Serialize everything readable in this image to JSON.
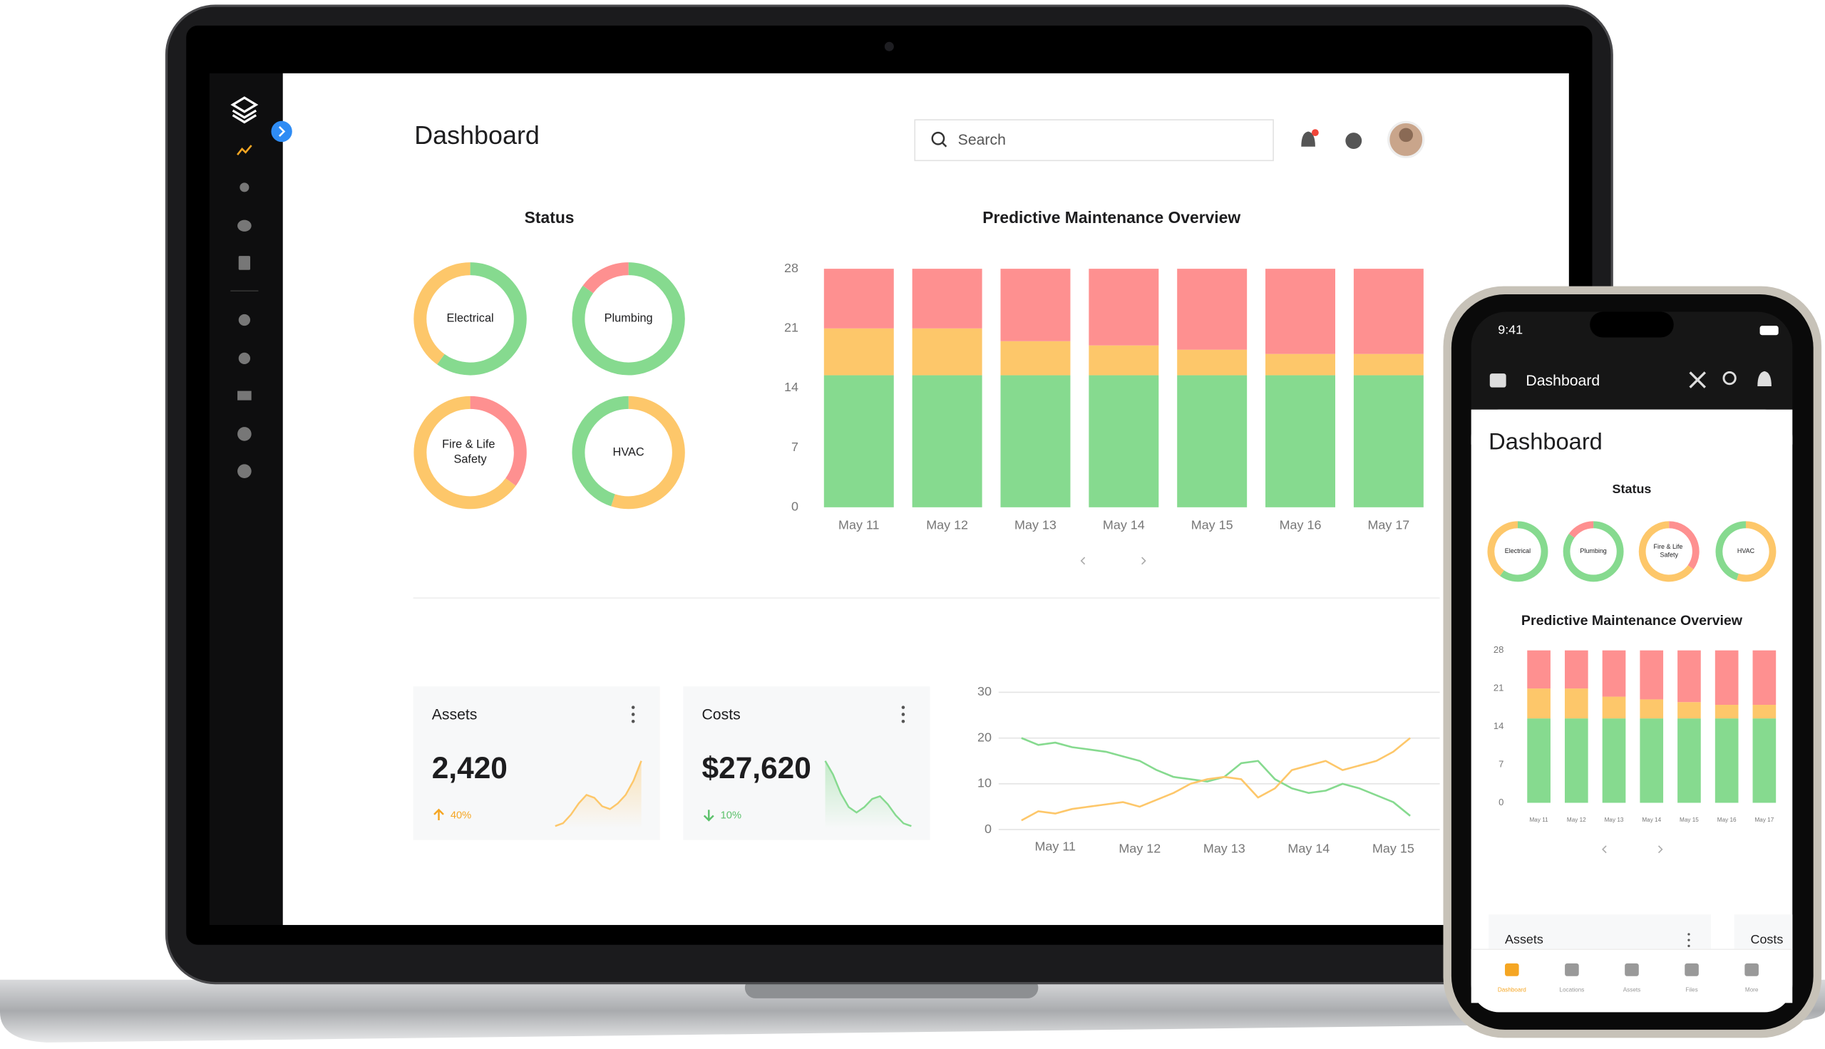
{
  "screen": {
    "title": "Dashboard",
    "search": "Search",
    "time": "9:41",
    "cards": [
      {
        "title": "Assets",
        "value": "2,420",
        "change": "40%",
        "trend": [
          1,
          2,
          5,
          9,
          12,
          11,
          8,
          7,
          9,
          12,
          17,
          24
        ]
      },
      {
        "title": "Costs",
        "value": "$27,620",
        "change": "10%",
        "trend": [
          24,
          19,
          12,
          7,
          5,
          7,
          10,
          11,
          8,
          4,
          1,
          0
        ]
      }
    ],
    "nav": [
      "Dashboard",
      "Locations",
      "Assets",
      "Files",
      "More"
    ]
  },
  "chart_data": [
    {
      "type": "donut",
      "title": "Status",
      "donuts": [
        {
          "label": "Electrical",
          "segments": [
            {
              "value": 60,
              "color": "#86da8f"
            },
            {
              "value": 40,
              "color": "#fdc76a"
            }
          ]
        },
        {
          "label": "Plumbing",
          "segments": [
            {
              "value": 85,
              "color": "#86da8f"
            },
            {
              "value": 15,
              "color": "#fe9090"
            }
          ]
        },
        {
          "label": "Fire & Life Safety",
          "segments": [
            {
              "value": 35,
              "color": "#fe9090"
            },
            {
              "value": 65,
              "color": "#fdc76a"
            }
          ]
        },
        {
          "label": "HVAC",
          "segments": [
            {
              "value": 55,
              "color": "#fdc76a"
            },
            {
              "value": 45,
              "color": "#86da8f"
            }
          ]
        }
      ]
    },
    {
      "type": "bar",
      "stacked": true,
      "title": "Predictive Maintenance Overview",
      "categories": [
        "May 11",
        "May 12",
        "May 13",
        "May 14",
        "May 15",
        "May 16",
        "May 17"
      ],
      "series": [
        {
          "color": "#86da8f",
          "values": [
            15.5,
            15.5,
            15.5,
            15.5,
            15.5,
            15.5,
            15.5
          ]
        },
        {
          "color": "#fdc76a",
          "values": [
            5.5,
            5.5,
            4,
            3.5,
            3,
            2.5,
            2.5
          ]
        },
        {
          "color": "#fe9090",
          "values": [
            7,
            7,
            8.5,
            9,
            9.5,
            10,
            10
          ]
        }
      ],
      "ylim": [
        0,
        28
      ],
      "yticks": [
        0,
        7,
        14,
        21,
        28
      ],
      "grid": false
    },
    {
      "type": "line",
      "x": [
        -0.4,
        -0.2,
        0,
        0.2,
        0.4,
        0.6,
        0.8,
        1,
        1.2,
        1.4,
        1.6,
        1.8,
        2,
        2.2,
        2.4,
        2.6,
        2.8,
        3,
        3.2,
        3.4,
        3.6,
        3.8,
        4,
        4.2
      ],
      "xlim": [
        -0.67,
        4.55
      ],
      "xticks": [
        {
          "value": 0,
          "label": "May 11"
        },
        {
          "value": 1,
          "label": "May 12"
        },
        {
          "value": 2,
          "label": "May 13"
        },
        {
          "value": 3,
          "label": "May 14"
        },
        {
          "value": 4,
          "label": "May 15"
        }
      ],
      "series": [
        {
          "color": "#86da8f",
          "values": [
            20,
            18.5,
            19,
            18,
            17.5,
            17,
            16,
            15,
            13,
            11.5,
            11,
            10.5,
            11.5,
            14.5,
            15,
            11,
            9,
            8,
            8.5,
            10,
            9,
            7.5,
            6,
            3
          ]
        },
        {
          "color": "#fdc76a",
          "values": [
            2,
            4,
            3.5,
            4.5,
            5,
            5.5,
            6,
            5,
            6.5,
            8,
            10,
            11,
            11.5,
            11,
            7,
            9,
            13,
            14,
            15,
            13,
            14,
            15,
            17,
            20
          ]
        }
      ],
      "ylim": [
        0,
        30
      ],
      "yticks": [
        0,
        10,
        20,
        30
      ],
      "grid": true
    }
  ]
}
